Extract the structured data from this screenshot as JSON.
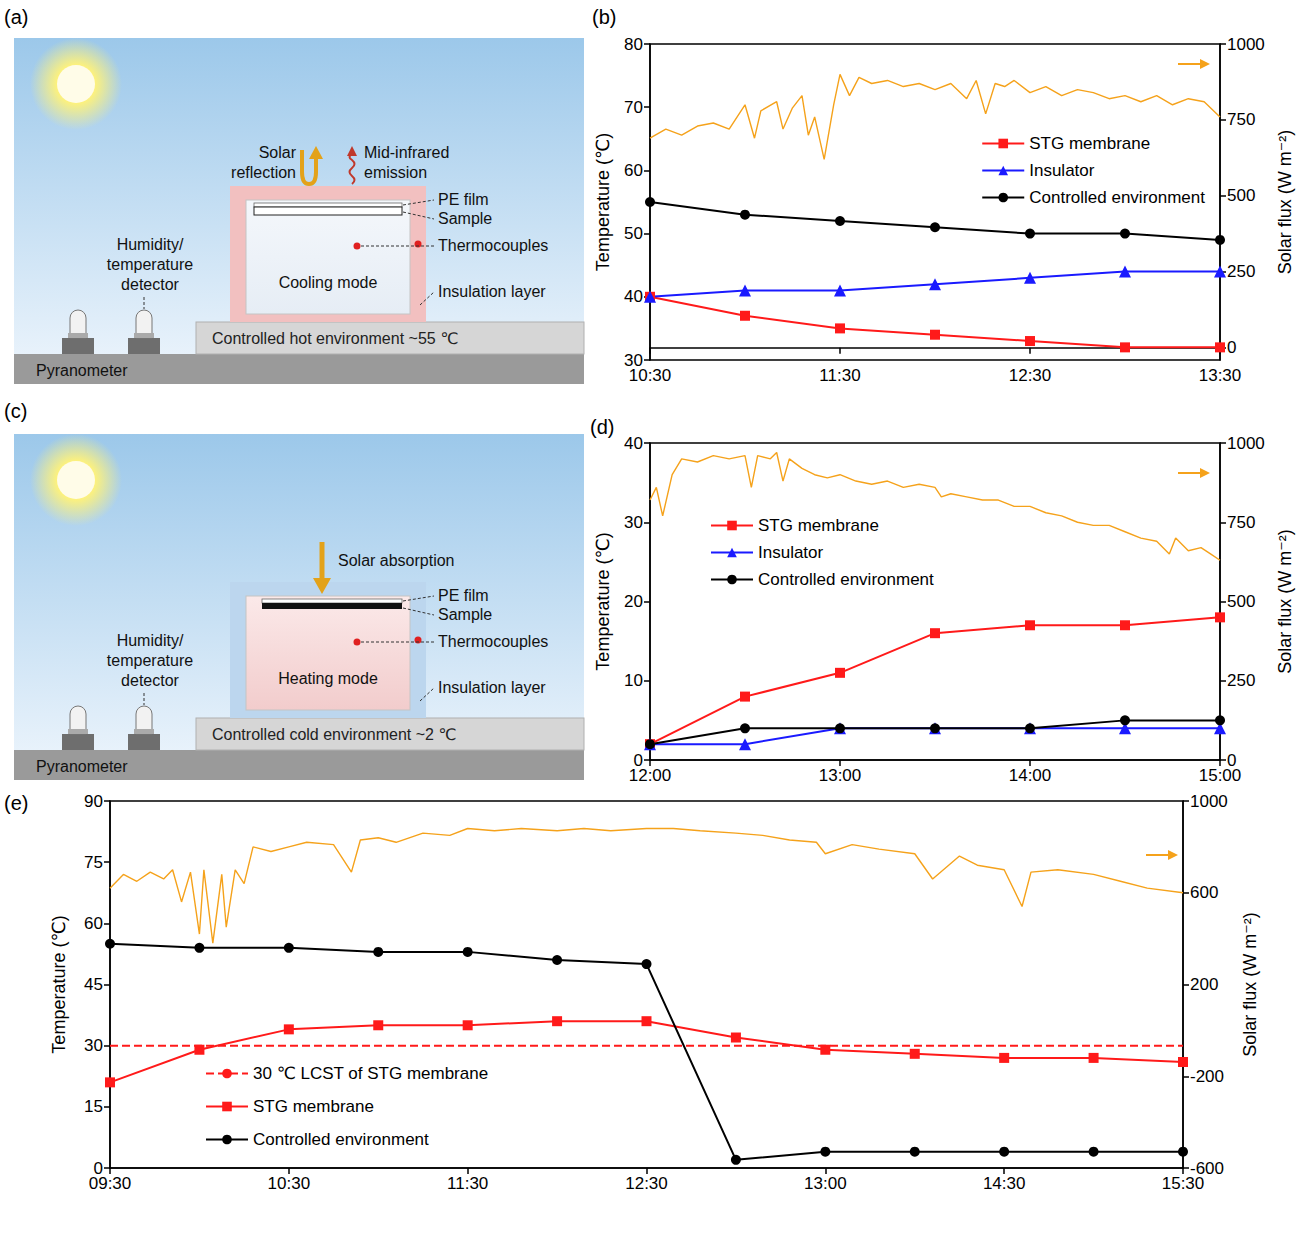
{
  "diagrams": [
    {
      "panel": "(a)",
      "arrow_labels": [
        "Solar reflection",
        "Mid-infrared emission"
      ],
      "box_labels": [
        "PE film",
        "Sample",
        "Thermocouples",
        "Insulation layer"
      ],
      "mode_label": "Cooling mode",
      "detector_label": "Humidity/temperature detector",
      "pyranometer_label": "Pyranometer",
      "environment_label": "Controlled hot environment ~55 ℃"
    },
    {
      "panel": "(c)",
      "arrow_labels": [
        "Solar absorption"
      ],
      "box_labels": [
        "PE film",
        "Sample",
        "Thermocouples",
        "Insulation layer"
      ],
      "mode_label": "Heating mode",
      "detector_label": "Humidity/temperature detector",
      "pyranometer_label": "Pyranometer",
      "environment_label": "Controlled cold environment ~2 ℃"
    }
  ],
  "chart_data": [
    {
      "panel": "(b)",
      "type": "line",
      "xlim": [
        630,
        810
      ],
      "xticks": [
        {
          "value": 630,
          "label": "10:30"
        },
        {
          "value": 690,
          "label": "11:30"
        },
        {
          "value": 750,
          "label": "12:30"
        },
        {
          "value": 810,
          "label": "13:30"
        }
      ],
      "ylabel": "Temperature (℃)",
      "ylim": [
        30,
        80
      ],
      "yticks": [
        30,
        40,
        50,
        60,
        70,
        80
      ],
      "y2label": "Solar flux (W m⁻²)",
      "y2lim": [
        -40,
        1000
      ],
      "y2ticks": [
        0,
        250,
        500,
        750,
        1000
      ],
      "grid": false,
      "legend": "right",
      "series": [
        {
          "name": "STG membrane",
          "color": "#ff1a1a",
          "marker": "square",
          "x": [
            630,
            660,
            690,
            720,
            750,
            780,
            810
          ],
          "values": [
            40,
            37,
            35,
            34,
            33,
            32,
            32
          ]
        },
        {
          "name": "Insulator",
          "color": "#1a1aff",
          "marker": "triangle",
          "x": [
            630,
            660,
            690,
            720,
            750,
            780,
            810
          ],
          "values": [
            40,
            41,
            41,
            42,
            43,
            44,
            44
          ]
        },
        {
          "name": "Controlled environment",
          "color": "#000000",
          "marker": "circle",
          "x": [
            630,
            660,
            690,
            720,
            750,
            780,
            810
          ],
          "values": [
            55,
            53,
            52,
            51,
            50,
            50,
            49
          ]
        },
        {
          "color": "#f5a21b",
          "marker": "none",
          "axis": "y2",
          "x": [
            630,
            635,
            640,
            645,
            650,
            655,
            660,
            663,
            665,
            670,
            672,
            675,
            678,
            680,
            682,
            685,
            688,
            690,
            693,
            696,
            700,
            705,
            710,
            715,
            720,
            725,
            730,
            733,
            736,
            739,
            742,
            745,
            750,
            755,
            760,
            765,
            770,
            775,
            780,
            785,
            790,
            795,
            800,
            805,
            810
          ],
          "values": [
            690,
            720,
            700,
            730,
            740,
            720,
            800,
            690,
            780,
            810,
            720,
            790,
            830,
            700,
            760,
            620,
            800,
            900,
            830,
            890,
            870,
            880,
            860,
            870,
            850,
            870,
            820,
            880,
            770,
            870,
            860,
            880,
            840,
            860,
            830,
            850,
            840,
            820,
            830,
            810,
            830,
            800,
            820,
            810,
            760
          ]
        }
      ]
    },
    {
      "panel": "(d)",
      "type": "line",
      "xlim": [
        720,
        900
      ],
      "xticks": [
        {
          "value": 720,
          "label": "12:00"
        },
        {
          "value": 780,
          "label": "13:00"
        },
        {
          "value": 840,
          "label": "14:00"
        },
        {
          "value": 900,
          "label": "15:00"
        }
      ],
      "ylabel": "Temperature (℃)",
      "ylim": [
        0,
        40
      ],
      "yticks": [
        0,
        10,
        20,
        30,
        40
      ],
      "y2label": "Solar flux (W m⁻²)",
      "y2lim": [
        0,
        1000
      ],
      "y2ticks": [
        0,
        250,
        500,
        750,
        1000
      ],
      "grid": false,
      "legend": "upper-left",
      "series": [
        {
          "name": "STG membrane",
          "color": "#ff1a1a",
          "marker": "square",
          "x": [
            720,
            750,
            780,
            810,
            840,
            870,
            900
          ],
          "values": [
            2,
            8,
            11,
            16,
            17,
            17,
            18
          ]
        },
        {
          "name": "Insulator",
          "color": "#1a1aff",
          "marker": "triangle",
          "x": [
            720,
            750,
            780,
            810,
            840,
            870,
            900
          ],
          "values": [
            2,
            2,
            4,
            4,
            4,
            4,
            4
          ]
        },
        {
          "name": "Controlled environment",
          "color": "#000000",
          "marker": "circle",
          "x": [
            720,
            750,
            780,
            810,
            840,
            870,
            900
          ],
          "values": [
            2,
            4,
            4,
            4,
            4,
            5,
            5
          ]
        },
        {
          "color": "#f5a21b",
          "marker": "none",
          "axis": "y2",
          "x": [
            720,
            722,
            724,
            727,
            730,
            735,
            740,
            745,
            750,
            752,
            754,
            758,
            760,
            762,
            764,
            768,
            772,
            776,
            780,
            785,
            790,
            795,
            800,
            805,
            810,
            812,
            815,
            820,
            825,
            830,
            835,
            840,
            845,
            850,
            855,
            860,
            865,
            870,
            875,
            880,
            884,
            886,
            890,
            894,
            897,
            900
          ],
          "values": [
            820,
            860,
            770,
            900,
            950,
            940,
            960,
            950,
            960,
            860,
            960,
            950,
            970,
            880,
            950,
            920,
            900,
            890,
            900,
            880,
            870,
            880,
            860,
            870,
            860,
            830,
            840,
            830,
            820,
            820,
            800,
            800,
            780,
            770,
            750,
            740,
            740,
            720,
            700,
            690,
            650,
            700,
            660,
            670,
            650,
            630
          ]
        }
      ]
    },
    {
      "panel": "(e)",
      "type": "line",
      "xlim": [
        0,
        12
      ],
      "xticks": [
        {
          "value": 0,
          "label": "09:30"
        },
        {
          "value": 2,
          "label": "10:30"
        },
        {
          "value": 4,
          "label": "11:30"
        },
        {
          "value": 6,
          "label": "12:30"
        },
        {
          "value": 8,
          "label": "13:00"
        },
        {
          "value": 10,
          "label": "14:30"
        },
        {
          "value": 12,
          "label": "15:30"
        }
      ],
      "ylabel": "Temperature (℃)",
      "ylim": [
        0,
        90
      ],
      "yticks": [
        0,
        15,
        30,
        45,
        60,
        75,
        90
      ],
      "y2label": "Solar flux (W m⁻²)",
      "y2lim": [
        -600,
        1000
      ],
      "y2ticks": [
        -600,
        -200,
        200,
        600,
        1000
      ],
      "grid": false,
      "legend": "lower-left",
      "series": [
        {
          "name": "30 ℃ LCST of STG membrane",
          "color": "#ff1a1a",
          "marker": "none",
          "line_style": "dashed",
          "x": [
            0,
            12
          ],
          "values": [
            30,
            30
          ]
        },
        {
          "name": "STG membrane",
          "color": "#ff1a1a",
          "marker": "square",
          "x": [
            0,
            1,
            2,
            3,
            4,
            5,
            6,
            7,
            8,
            9,
            10,
            11,
            12
          ],
          "values": [
            21,
            29,
            34,
            35,
            35,
            36,
            36,
            32,
            29,
            28,
            27,
            27,
            26
          ]
        },
        {
          "name": "Controlled environment",
          "color": "#000000",
          "marker": "circle",
          "x": [
            0,
            1,
            2,
            3,
            4,
            5,
            6,
            7,
            8,
            9,
            10,
            11,
            12
          ],
          "values": [
            55,
            54,
            54,
            53,
            53,
            51,
            50,
            2,
            4,
            4,
            4,
            4,
            4
          ]
        },
        {
          "color": "#f5a21b",
          "marker": "none",
          "axis": "y2",
          "x": [
            0,
            0.15,
            0.3,
            0.45,
            0.6,
            0.7,
            0.8,
            0.9,
            1.0,
            1.05,
            1.15,
            1.25,
            1.3,
            1.4,
            1.5,
            1.6,
            1.8,
            2.0,
            2.2,
            2.5,
            2.7,
            2.8,
            3.0,
            3.2,
            3.5,
            3.8,
            4.0,
            4.3,
            4.6,
            5.0,
            5.3,
            5.6,
            6.0,
            6.3,
            6.6,
            7.0,
            7.3,
            7.6,
            7.9,
            8.0,
            8.3,
            8.6,
            9.0,
            9.2,
            9.5,
            9.7,
            10.0,
            10.2,
            10.3,
            10.6,
            11.0,
            11.3,
            11.6,
            12.0
          ],
          "values": [
            620,
            680,
            650,
            690,
            660,
            700,
            560,
            690,
            420,
            700,
            380,
            680,
            450,
            700,
            640,
            800,
            780,
            800,
            820,
            810,
            690,
            830,
            840,
            820,
            860,
            850,
            880,
            870,
            880,
            870,
            880,
            870,
            880,
            880,
            870,
            860,
            850,
            830,
            820,
            770,
            810,
            790,
            770,
            660,
            760,
            720,
            700,
            540,
            690,
            700,
            680,
            650,
            620,
            600
          ]
        }
      ]
    }
  ]
}
